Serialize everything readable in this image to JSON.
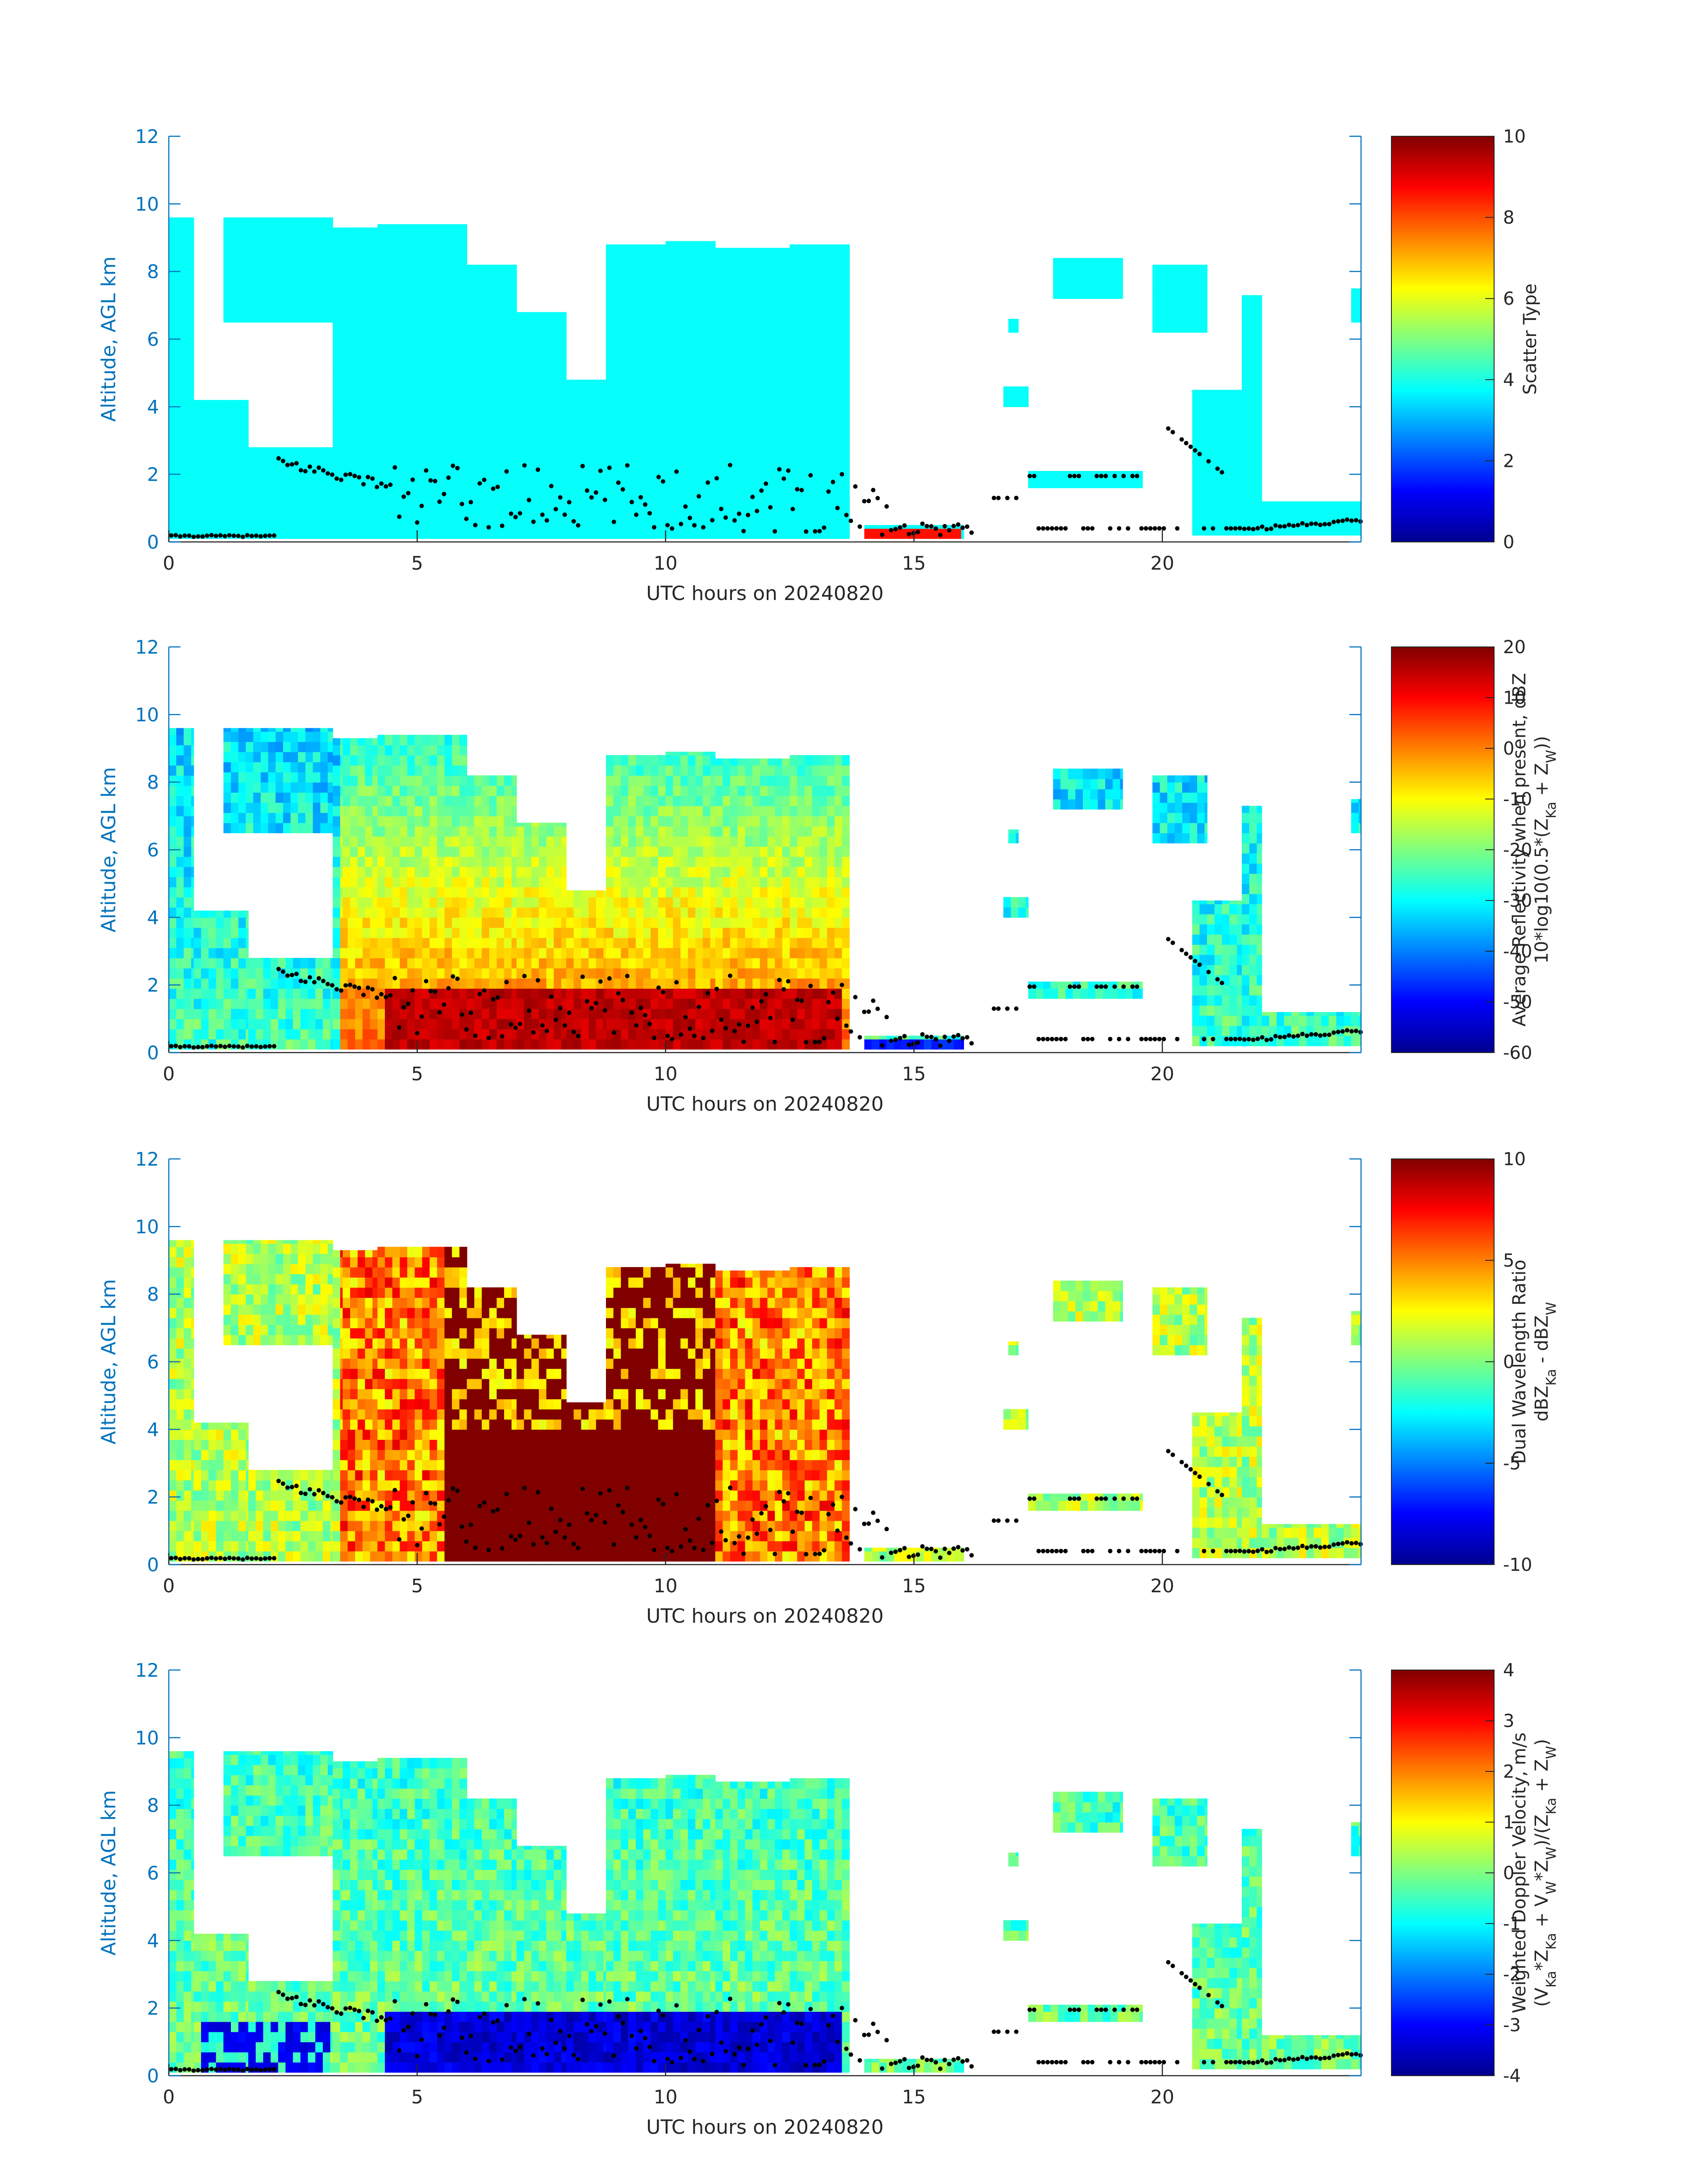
{
  "chart_data": [
    {
      "type": "heatmap",
      "xlabel": "UTC hours on 20240820",
      "ylabel": "Altitude, AGL km",
      "xlim": [
        0,
        24
      ],
      "ylim": [
        0,
        12
      ],
      "xticks": [
        "0",
        "5",
        "10",
        "15",
        "20"
      ],
      "yticks": [
        "0",
        "2",
        "4",
        "6",
        "8",
        "10",
        "12"
      ],
      "colorbar": {
        "label_lines": [
          "Scatter Type"
        ],
        "range": [
          0,
          10
        ],
        "ticks": [
          "0",
          "2",
          "4",
          "6",
          "8",
          "10"
        ],
        "colormap": "jet"
      },
      "field": "scatter_type",
      "dominant_value": 3.8,
      "secondary_value": 8.6
    },
    {
      "type": "heatmap",
      "xlabel": "UTC hours on 20240820",
      "ylabel": "Altitude, AGL km",
      "xlim": [
        0,
        24
      ],
      "ylim": [
        0,
        12
      ],
      "xticks": [
        "0",
        "5",
        "10",
        "15",
        "20"
      ],
      "yticks": [
        "0",
        "2",
        "4",
        "6",
        "8",
        "10",
        "12"
      ],
      "colorbar": {
        "label_lines": [
          "Average Reflectivity when present, dBZ",
          "10*log10(0.5*(Z_Ka + Z_W))"
        ],
        "range": [
          -60,
          20
        ],
        "ticks": [
          "-60",
          "-50",
          "-40",
          "-30",
          "-20",
          "-10",
          "0",
          "10",
          "20"
        ],
        "colormap": "jet"
      },
      "field": "reflectivity"
    },
    {
      "type": "heatmap",
      "xlabel": "UTC hours on 20240820",
      "ylabel": "Altitude, AGL km",
      "xlim": [
        0,
        24
      ],
      "ylim": [
        0,
        12
      ],
      "xticks": [
        "0",
        "5",
        "10",
        "15",
        "20"
      ],
      "yticks": [
        "0",
        "2",
        "4",
        "6",
        "8",
        "10",
        "12"
      ],
      "colorbar": {
        "label_lines": [
          "Dual Wavelength Ratio",
          "dBZ_Ka - dBZ_W"
        ],
        "range": [
          -10,
          10
        ],
        "ticks": [
          "-10",
          "-5",
          "0",
          "5",
          "10"
        ],
        "colormap": "jet"
      },
      "field": "dwr"
    },
    {
      "type": "heatmap",
      "xlabel": "UTC hours on 20240820",
      "ylabel": "Altitude, AGL km",
      "xlim": [
        0,
        24
      ],
      "ylim": [
        0,
        12
      ],
      "xticks": [
        "0",
        "5",
        "10",
        "15",
        "20"
      ],
      "yticks": [
        "0",
        "2",
        "4",
        "6",
        "8",
        "10",
        "12"
      ],
      "colorbar": {
        "label_lines": [
          "Weighted Doppler Velocity, m/s",
          "(V_Ka*Z_Ka + V_W*Z_W)/(Z_Ka + Z_W)"
        ],
        "range": [
          -4,
          4
        ],
        "ticks": [
          "-4",
          "-3",
          "-2",
          "-1",
          "0",
          "1",
          "2",
          "3",
          "4"
        ],
        "colormap": "jet"
      },
      "field": "velocity"
    }
  ],
  "cloud_regions": [
    {
      "t0": 0.0,
      "t1": 0.5,
      "b0": 0.1,
      "b1": 9.6
    },
    {
      "t0": 0.5,
      "t1": 1.6,
      "b0": 0.1,
      "b1": 4.2
    },
    {
      "t0": 1.1,
      "t1": 3.3,
      "b0": 6.5,
      "b1": 9.6
    },
    {
      "t0": 1.6,
      "t1": 3.3,
      "b0": 0.1,
      "b1": 2.8
    },
    {
      "t0": 3.3,
      "t1": 4.2,
      "b0": 0.1,
      "b1": 9.3
    },
    {
      "t0": 3.5,
      "t1": 4.2,
      "b0": 4.0,
      "b1": 9.3
    },
    {
      "t0": 4.2,
      "t1": 6.0,
      "b0": 0.1,
      "b1": 9.4
    },
    {
      "t0": 6.0,
      "t1": 7.0,
      "b0": 0.1,
      "b1": 8.2
    },
    {
      "t0": 7.0,
      "t1": 8.0,
      "b0": 0.1,
      "b1": 6.8
    },
    {
      "t0": 8.0,
      "t1": 8.8,
      "b0": 0.1,
      "b1": 4.8
    },
    {
      "t0": 8.8,
      "t1": 10.0,
      "b0": 0.1,
      "b1": 8.8
    },
    {
      "t0": 10.0,
      "t1": 11.0,
      "b0": 0.1,
      "b1": 8.9
    },
    {
      "t0": 11.0,
      "t1": 12.5,
      "b0": 0.1,
      "b1": 8.7
    },
    {
      "t0": 12.5,
      "t1": 13.7,
      "b0": 0.1,
      "b1": 8.8
    },
    {
      "t0": 14.0,
      "t1": 16.0,
      "b0": 0.1,
      "b1": 0.5
    },
    {
      "t0": 16.9,
      "t1": 17.1,
      "b0": 6.2,
      "b1": 6.6
    },
    {
      "t0": 16.8,
      "t1": 17.3,
      "b0": 4.0,
      "b1": 4.6
    },
    {
      "t0": 17.3,
      "t1": 19.6,
      "b0": 1.6,
      "b1": 2.1
    },
    {
      "t0": 17.8,
      "t1": 19.2,
      "b0": 7.2,
      "b1": 8.4
    },
    {
      "t0": 19.8,
      "t1": 20.9,
      "b0": 6.2,
      "b1": 8.2
    },
    {
      "t0": 20.6,
      "t1": 21.9,
      "b0": 0.2,
      "b1": 4.5
    },
    {
      "t0": 21.6,
      "t1": 22.0,
      "b0": 0.2,
      "b1": 7.3
    },
    {
      "t0": 22.0,
      "t1": 24.0,
      "b0": 0.2,
      "b1": 1.2
    },
    {
      "t0": 23.8,
      "t1": 24.0,
      "b0": 6.5,
      "b1": 7.5
    }
  ],
  "rain_layer": {
    "t0": 4.3,
    "t1": 13.6,
    "top_km": 1.8
  }
}
